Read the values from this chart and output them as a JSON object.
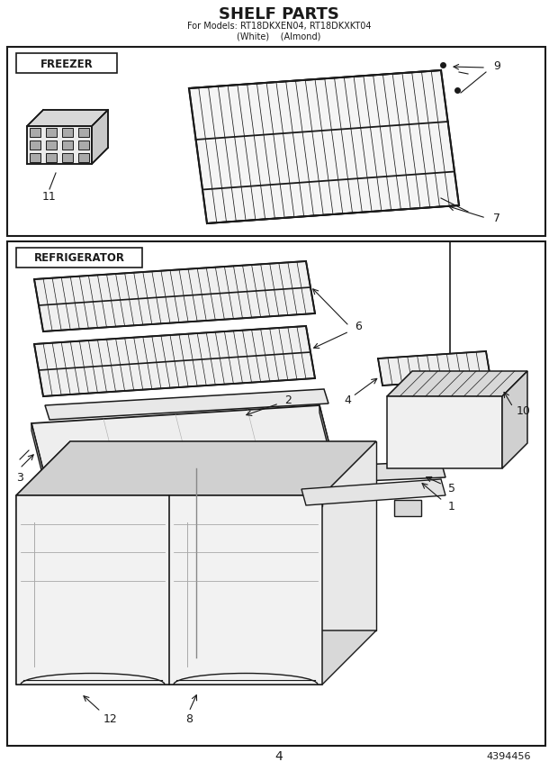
{
  "title": "SHELF PARTS",
  "subtitle": "For Models: RT18DKXEN04, RT18DKXKT04",
  "subtitle2": "(White)    (Almond)",
  "page_number": "4",
  "part_number": "4394456",
  "bg": "#ffffff",
  "lc": "#1a1a1a"
}
